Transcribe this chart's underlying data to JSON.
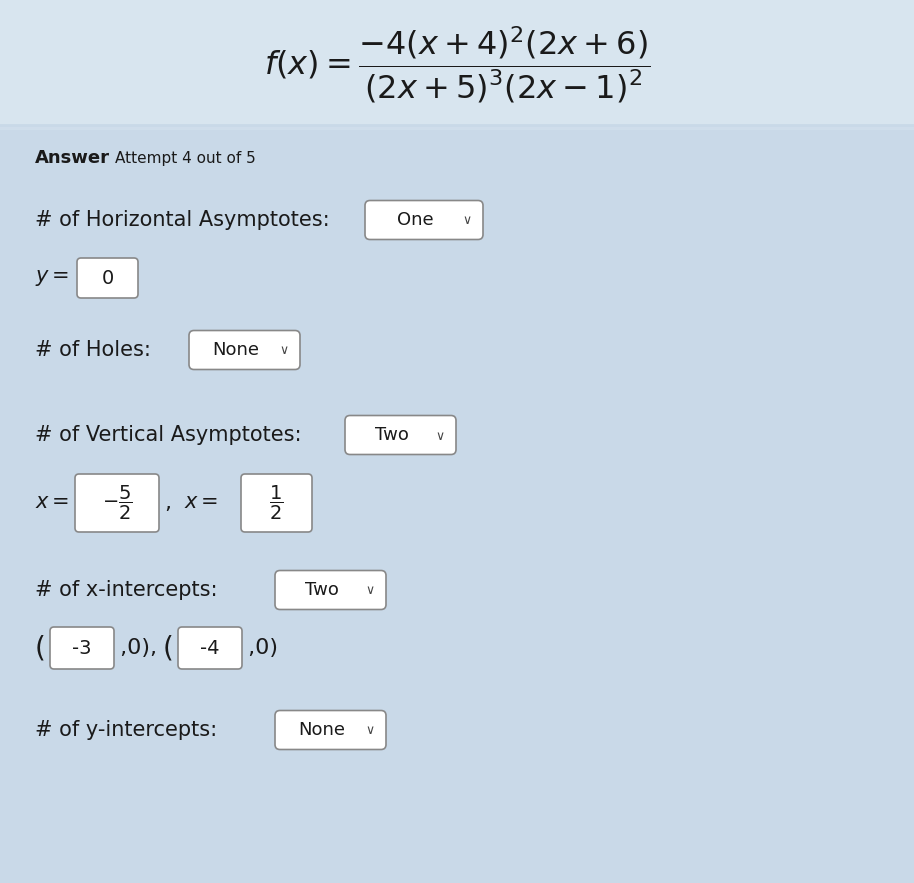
{
  "bg_color": "#c9d9e8",
  "top_fade_color": "#dce7f0",
  "font_color": "#1a1a1a",
  "box_border_color": "#888888",
  "formula_text": "$f(x) = \\dfrac{-4(x+4)^{2}(2x+6)}{(2x+5)^{3}(2x-1)^{2}}$",
  "answer_bold": "Answer",
  "attempt_text": "Attempt 4 out of 5",
  "sec1_label": "# of Horizontal Asymptotes:",
  "sec1_dd": "One",
  "sec1_sub_prefix": "y =",
  "sec1_sub_box": "0",
  "sec2_label": "# of Holes:",
  "sec2_dd": "None",
  "sec3_label": "# of Vertical Asymptotes:",
  "sec3_dd": "Two",
  "sec3_sub1_prefix": "x =",
  "sec3_sub1_box": "$-\\dfrac{5}{2}$",
  "sec3_sub2_prefix": "x =",
  "sec3_sub2_box": "$\\dfrac{1}{2}$",
  "sec4_label": "# of x-intercepts:",
  "sec4_dd": "Two",
  "sec4_sub1_box": "-3",
  "sec4_sub2_box": "-4",
  "sec5_label": "# of y-intercepts:",
  "sec5_dd": "None",
  "fig_w": 9.14,
  "fig_h": 8.83,
  "dpi": 100
}
